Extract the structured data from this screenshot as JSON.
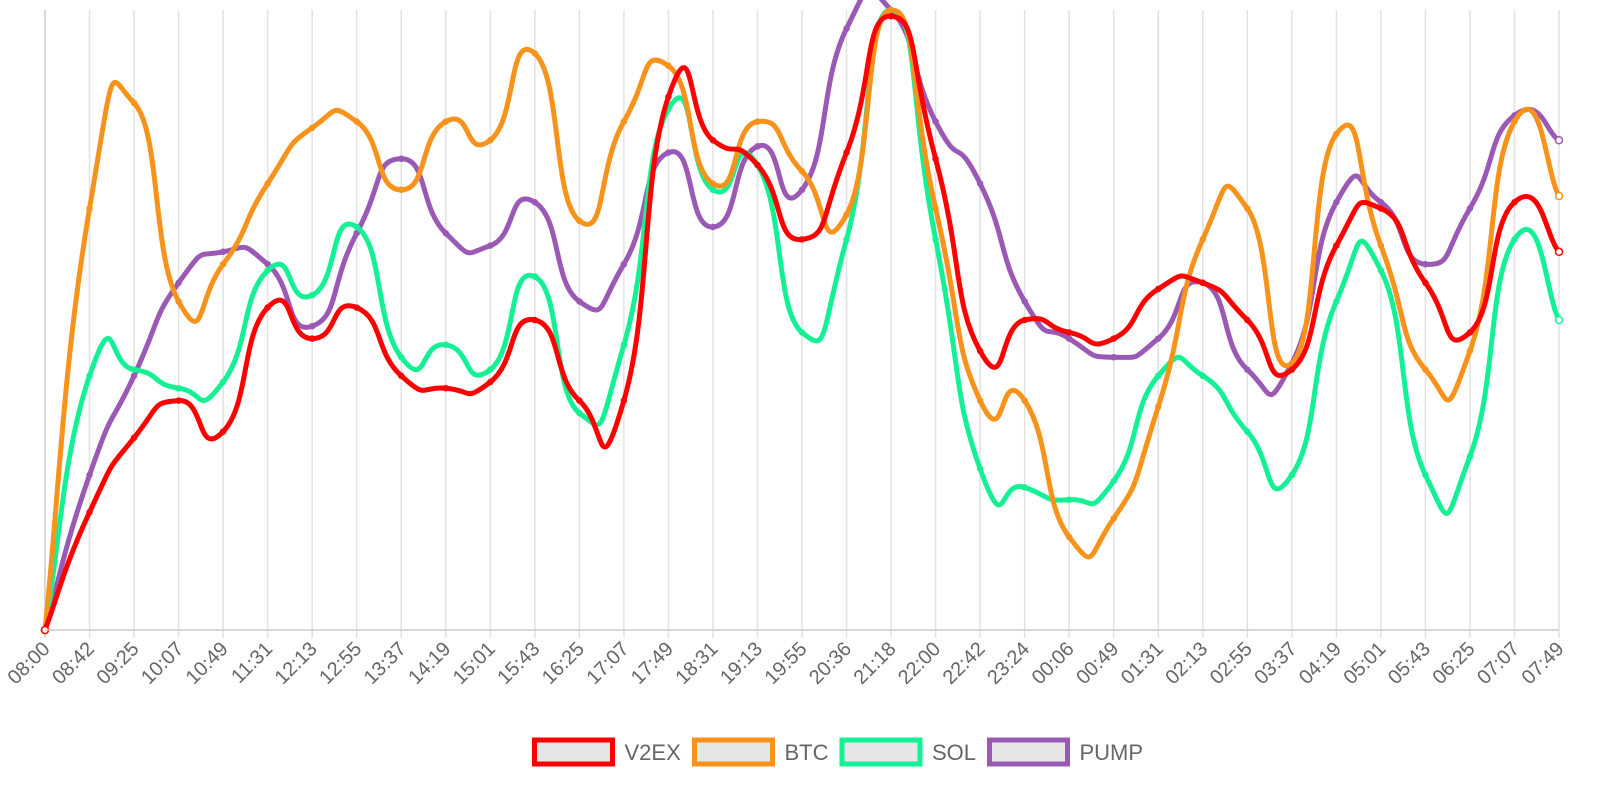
{
  "chart_data": {
    "type": "line",
    "smooth": true,
    "grid": {
      "vertical": true,
      "horizontal": false
    },
    "y_axis_labels_shown": false,
    "ylim": [
      0,
      100
    ],
    "legend_position": "bottom-center",
    "categories": [
      "08:00",
      "08:42",
      "09:25",
      "10:07",
      "10:49",
      "11:31",
      "12:13",
      "12:55",
      "13:37",
      "14:19",
      "15:01",
      "15:43",
      "16:25",
      "17:07",
      "17:49",
      "18:31",
      "19:13",
      "19:55",
      "20:36",
      "21:18",
      "22:00",
      "22:42",
      "23:24",
      "00:06",
      "00:49",
      "01:31",
      "02:13",
      "02:55",
      "03:37",
      "04:19",
      "05:01",
      "05:43",
      "06:25",
      "07:07",
      "07:49"
    ],
    "series": [
      {
        "name": "V2EX",
        "color": "#ff0000",
        "values": [
          0,
          19,
          31,
          37,
          32,
          52,
          47,
          52,
          41,
          39,
          40,
          50,
          37,
          37,
          86,
          79,
          75,
          63,
          77,
          99,
          76,
          45,
          50,
          48,
          47,
          55,
          56,
          50,
          42,
          62,
          68,
          56,
          48,
          69,
          61
        ]
      },
      {
        "name": "BTC",
        "color": "#f7931a",
        "values": [
          0,
          68,
          85,
          53,
          59,
          72,
          81,
          82,
          71,
          82,
          79,
          93,
          66,
          82,
          91,
          72,
          82,
          74,
          67,
          100,
          68,
          37,
          37,
          15,
          18,
          36,
          63,
          68,
          43,
          80,
          62,
          42,
          45,
          82,
          70
        ]
      },
      {
        "name": "SOL",
        "color": "#14f195",
        "values": [
          0,
          41,
          42,
          39,
          40,
          58,
          54,
          65,
          44,
          46,
          42,
          57,
          35,
          46,
          84,
          71,
          75,
          48,
          63,
          100,
          63,
          26,
          23,
          21,
          24,
          41,
          41,
          32,
          25,
          53,
          58,
          25,
          28,
          63,
          50
        ]
      },
      {
        "name": "PUMP",
        "color": "#9b59b6",
        "values": [
          0,
          25,
          41,
          56,
          61,
          59,
          49,
          64,
          76,
          64,
          62,
          69,
          53,
          59,
          77,
          65,
          78,
          71,
          97,
          100,
          82,
          72,
          53,
          47,
          44,
          47,
          56,
          42,
          43,
          69,
          69,
          59,
          68,
          83,
          79
        ]
      }
    ]
  }
}
